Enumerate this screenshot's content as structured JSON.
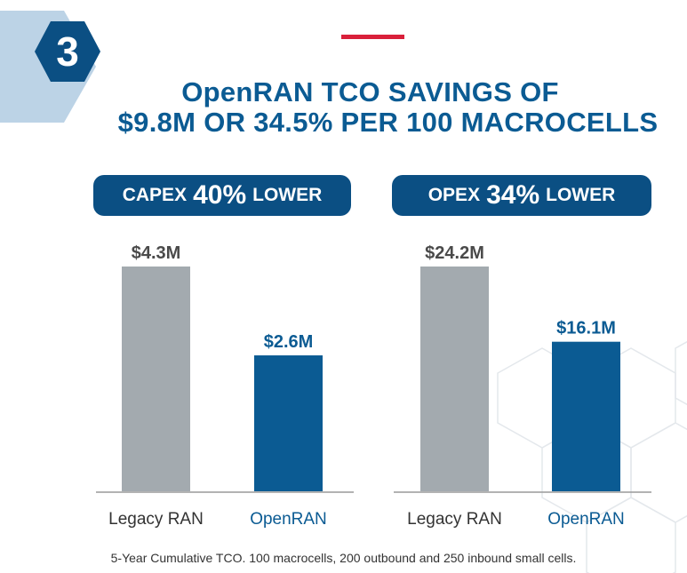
{
  "step_number": "3",
  "title": {
    "line1": "OpenRAN TCO SAVINGS OF",
    "line2": "$9.8M OR 34.5% PER 100 MACROCELLS"
  },
  "colors": {
    "legacy": "#a3aaaf",
    "openran": "#0b5b93",
    "accent_red": "#d9203a",
    "navy": "#0b4f83"
  },
  "chart_data": [
    {
      "type": "bar",
      "badge": {
        "label": "CAPEX",
        "value": "40%",
        "suffix": "LOWER"
      },
      "categories": [
        "Legacy RAN",
        "OpenRAN"
      ],
      "values": [
        4.3,
        2.6
      ],
      "data_labels": [
        "$4.3M",
        "$2.6M"
      ],
      "units": "$M"
    },
    {
      "type": "bar",
      "badge": {
        "label": "OPEX",
        "value": "34%",
        "suffix": "LOWER"
      },
      "categories": [
        "Legacy RAN",
        "OpenRAN"
      ],
      "values": [
        24.2,
        16.1
      ],
      "data_labels": [
        "$24.2M",
        "$16.1M"
      ],
      "units": "$M"
    }
  ],
  "footnote": "5-Year Cumulative TCO. 100 macrocells, 200 outbound and 250 inbound small cells."
}
